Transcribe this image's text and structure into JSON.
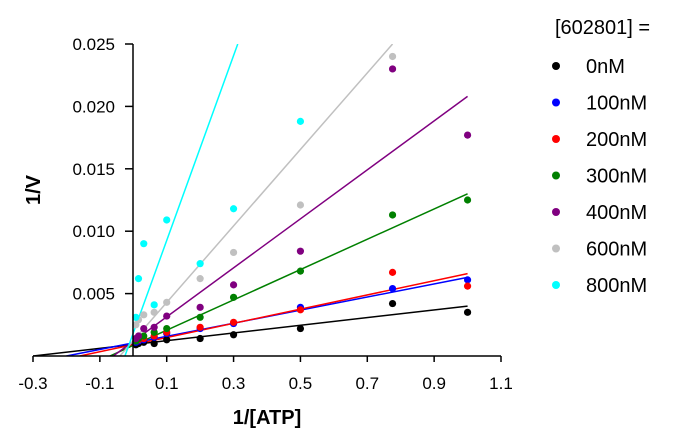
{
  "chart_data": {
    "type": "scatter",
    "title": "",
    "xlabel": "1/[ATP]",
    "ylabel": "1/V",
    "xlim": [
      -0.3,
      1.1
    ],
    "ylim": [
      0,
      0.025
    ],
    "x_ticks": [
      "-0.3",
      "-0.1",
      "0.1",
      "0.3",
      "0.5",
      "0.7",
      "0.9",
      "1.1"
    ],
    "y_ticks": [
      "0.005",
      "0.010",
      "0.015",
      "0.020",
      "0.025"
    ],
    "grid": false,
    "legend_title": "[602801] =",
    "legend_position": "right",
    "series": [
      {
        "name": "0nM",
        "color": "#000000",
        "x": [
          0.0078,
          0.0156,
          0.0313,
          0.0625,
          0.1,
          0.2,
          0.3,
          0.5,
          0.7756,
          1.0
        ],
        "y": [
          0.0009,
          0.001,
          0.0011,
          0.001,
          0.0013,
          0.0014,
          0.0017,
          0.0022,
          0.0042,
          0.0035
        ],
        "fit": [
          [
            -0.3,
            0.0
          ],
          [
            1.0,
            0.004
          ]
        ]
      },
      {
        "name": "100nM",
        "color": "#0000ff",
        "x": [
          0.0078,
          0.0156,
          0.0313,
          0.0625,
          0.1,
          0.2,
          0.3,
          0.5,
          0.7756,
          1.0
        ],
        "y": [
          0.0011,
          0.0012,
          0.0013,
          0.0015,
          0.0018,
          0.0022,
          0.0026,
          0.0039,
          0.0054,
          0.0061
        ],
        "fit": [
          [
            -0.2,
            0.0
          ],
          [
            1.0,
            0.0063
          ]
        ]
      },
      {
        "name": "200nM",
        "color": "#ff0000",
        "x": [
          0.0078,
          0.0156,
          0.0313,
          0.0625,
          0.1,
          0.2,
          0.3,
          0.5,
          0.7756,
          1.0
        ],
        "y": [
          0.0012,
          0.0013,
          0.0014,
          0.0016,
          0.0019,
          0.0023,
          0.0027,
          0.0037,
          0.0067,
          0.0056
        ],
        "fit": [
          [
            -0.16,
            0.0
          ],
          [
            1.0,
            0.0066
          ]
        ]
      },
      {
        "name": "300nM",
        "color": "#008000",
        "x": [
          0.0078,
          0.0156,
          0.0313,
          0.0625,
          0.1,
          0.2,
          0.3,
          0.5,
          0.7756,
          1.0
        ],
        "y": [
          0.0012,
          0.0014,
          0.0016,
          0.0019,
          0.0022,
          0.0031,
          0.0047,
          0.0068,
          0.0113,
          0.0125
        ],
        "fit": [
          [
            -0.07,
            0.0
          ],
          [
            1.0,
            0.013
          ]
        ]
      },
      {
        "name": "400nM",
        "color": "#800080",
        "x": [
          0.0078,
          0.0156,
          0.0313,
          0.0625,
          0.1,
          0.2,
          0.3,
          0.5,
          0.7756,
          1.0
        ],
        "y": [
          0.0014,
          0.0016,
          0.0022,
          0.0023,
          0.0032,
          0.0039,
          0.0057,
          0.0084,
          0.023,
          0.0177
        ],
        "fit": [
          [
            -0.06,
            0.0
          ],
          [
            1.0,
            0.0208
          ]
        ]
      },
      {
        "name": "600nM",
        "color": "#c0c0c0",
        "x": [
          0.0078,
          0.0156,
          0.0313,
          0.0625,
          0.1,
          0.2,
          0.3,
          0.5,
          0.7756
        ],
        "y": [
          0.0025,
          0.0029,
          0.0033,
          0.0035,
          0.0043,
          0.0062,
          0.0083,
          0.0121,
          0.024
        ],
        "fit": [
          [
            -0.04,
            0.0
          ],
          [
            0.7756,
            0.025
          ]
        ]
      },
      {
        "name": "800nM",
        "color": "#00ffff",
        "x": [
          0.0078,
          0.0156,
          0.0313,
          0.0625,
          0.1,
          0.2,
          0.3,
          0.5
        ],
        "y": [
          0.0031,
          0.0062,
          0.009,
          0.0041,
          0.0109,
          0.0074,
          0.0118,
          0.0188
        ],
        "fit": [
          [
            -0.025,
            0.0
          ],
          [
            0.3125,
            0.025
          ]
        ]
      }
    ]
  }
}
